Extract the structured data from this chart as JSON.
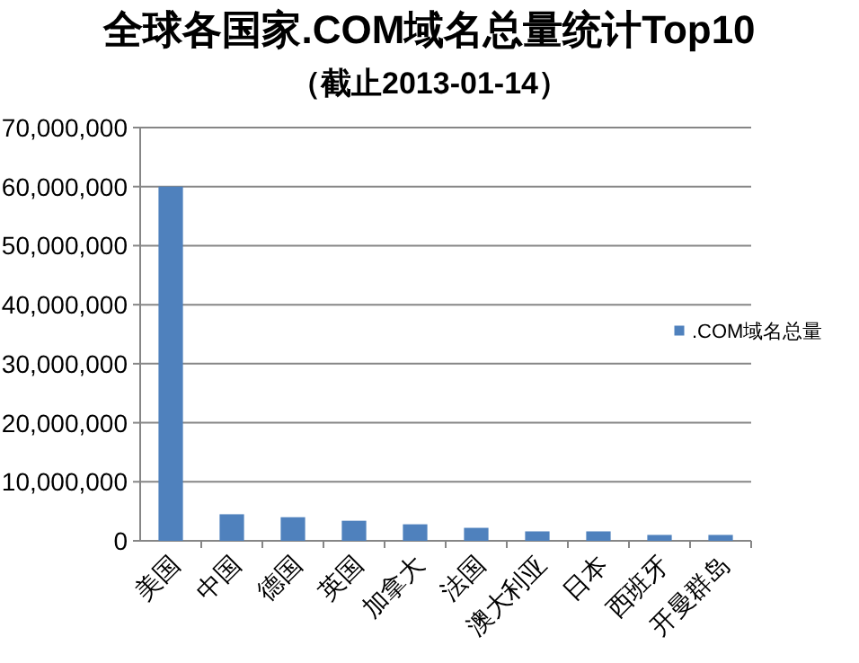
{
  "chart_data": {
    "type": "bar",
    "title": "全球各国家.COM域名总量统计Top10",
    "subtitle": "（截止2013-01-14）",
    "categories": [
      "美国",
      "中国",
      "德国",
      "英国",
      "加拿大",
      "法国",
      "澳大利亚",
      "日本",
      "西班牙",
      "开曼群岛"
    ],
    "series": [
      {
        "name": ".COM域名总量",
        "color": "#4f81bd",
        "values": [
          60000000,
          4500000,
          4000000,
          3400000,
          2800000,
          2200000,
          1600000,
          1600000,
          1000000,
          1000000
        ]
      }
    ],
    "ylim": [
      0,
      70000000
    ],
    "yticks": [
      {
        "value": 0,
        "label": "0"
      },
      {
        "value": 10000000,
        "label": "10,000,000"
      },
      {
        "value": 20000000,
        "label": "20,000,000"
      },
      {
        "value": 30000000,
        "label": "30,000,000"
      },
      {
        "value": 40000000,
        "label": "40,000,000"
      },
      {
        "value": 50000000,
        "label": "50,000,000"
      },
      {
        "value": 60000000,
        "label": "60,000,000"
      },
      {
        "value": 70000000,
        "label": "70,000,000"
      }
    ],
    "grid": "y",
    "legend": "right"
  }
}
